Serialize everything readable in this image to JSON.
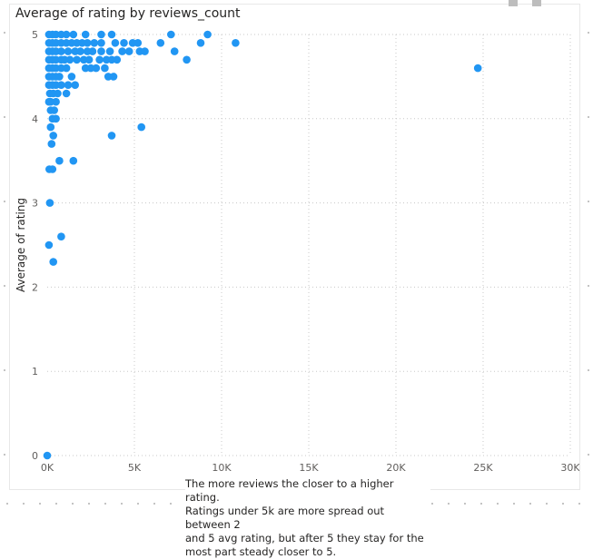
{
  "visual": {
    "title": "Average of rating by reviews_count"
  },
  "note": {
    "text": "The more reviews the closer to a higher rating.\nRatings under 5k are more spread out between 2\nand 5 avg rating, but after 5 they stay for the\nmost part steady closer to 5."
  },
  "colors": {
    "marker": "#2196f3",
    "grid": "#c8c8c8",
    "text": "#252423",
    "tick": "#605e5c"
  },
  "chart_data": {
    "type": "scatter",
    "title": "Average of rating by reviews_count",
    "xlabel": "",
    "ylabel": "Average of rating",
    "xlim": [
      0,
      30000
    ],
    "ylim": [
      0,
      5
    ],
    "x_ticks": [
      0,
      5000,
      10000,
      15000,
      20000,
      25000,
      30000
    ],
    "x_tick_labels": [
      "0K",
      "5K",
      "10K",
      "15K",
      "20K",
      "25K",
      "30K"
    ],
    "y_ticks": [
      0,
      1,
      2,
      3,
      4,
      5
    ],
    "y_tick_labels": [
      "0",
      "1",
      "2",
      "3",
      "4",
      "5"
    ],
    "grid": true,
    "series": [
      {
        "points": [
          [
            0,
            0
          ],
          [
            100,
            2.5
          ],
          [
            150,
            3.0
          ],
          [
            120,
            3.4
          ],
          [
            300,
            3.4
          ],
          [
            350,
            2.3
          ],
          [
            800,
            2.6
          ],
          [
            700,
            3.5
          ],
          [
            1500,
            3.5
          ],
          [
            250,
            3.7
          ],
          [
            350,
            3.8
          ],
          [
            3700,
            3.8
          ],
          [
            5400,
            3.9
          ],
          [
            200,
            3.9
          ],
          [
            300,
            4.0
          ],
          [
            500,
            4.0
          ],
          [
            200,
            4.1
          ],
          [
            400,
            4.1
          ],
          [
            200,
            4.2
          ],
          [
            500,
            4.2
          ],
          [
            100,
            4.2
          ],
          [
            150,
            4.3
          ],
          [
            350,
            4.3
          ],
          [
            1100,
            4.3
          ],
          [
            600,
            4.3
          ],
          [
            100,
            4.4
          ],
          [
            300,
            4.4
          ],
          [
            500,
            4.4
          ],
          [
            800,
            4.4
          ],
          [
            1200,
            4.4
          ],
          [
            1600,
            4.4
          ],
          [
            100,
            4.5
          ],
          [
            300,
            4.5
          ],
          [
            500,
            4.5
          ],
          [
            700,
            4.5
          ],
          [
            1400,
            4.5
          ],
          [
            3500,
            4.5
          ],
          [
            3800,
            4.5
          ],
          [
            100,
            4.6
          ],
          [
            300,
            4.6
          ],
          [
            500,
            4.6
          ],
          [
            800,
            4.6
          ],
          [
            1100,
            4.6
          ],
          [
            2200,
            4.6
          ],
          [
            2500,
            4.6
          ],
          [
            2800,
            4.6
          ],
          [
            3300,
            4.6
          ],
          [
            24700,
            4.6
          ],
          [
            100,
            4.7
          ],
          [
            300,
            4.7
          ],
          [
            500,
            4.7
          ],
          [
            800,
            4.7
          ],
          [
            1000,
            4.7
          ],
          [
            1300,
            4.7
          ],
          [
            1700,
            4.7
          ],
          [
            2100,
            4.7
          ],
          [
            2400,
            4.7
          ],
          [
            3000,
            4.7
          ],
          [
            3400,
            4.7
          ],
          [
            3700,
            4.7
          ],
          [
            4000,
            4.7
          ],
          [
            8000,
            4.7
          ],
          [
            100,
            4.8
          ],
          [
            300,
            4.8
          ],
          [
            500,
            4.8
          ],
          [
            800,
            4.8
          ],
          [
            1200,
            4.8
          ],
          [
            1600,
            4.8
          ],
          [
            1900,
            4.8
          ],
          [
            2300,
            4.8
          ],
          [
            2600,
            4.8
          ],
          [
            3100,
            4.8
          ],
          [
            3600,
            4.8
          ],
          [
            4300,
            4.8
          ],
          [
            4700,
            4.8
          ],
          [
            5300,
            4.8
          ],
          [
            5600,
            4.8
          ],
          [
            7300,
            4.8
          ],
          [
            100,
            4.9
          ],
          [
            300,
            4.9
          ],
          [
            500,
            4.9
          ],
          [
            800,
            4.9
          ],
          [
            1100,
            4.9
          ],
          [
            1400,
            4.9
          ],
          [
            1700,
            4.9
          ],
          [
            2000,
            4.9
          ],
          [
            2300,
            4.9
          ],
          [
            2700,
            4.9
          ],
          [
            3100,
            4.9
          ],
          [
            3900,
            4.9
          ],
          [
            4400,
            4.9
          ],
          [
            4900,
            4.9
          ],
          [
            5200,
            4.9
          ],
          [
            6500,
            4.9
          ],
          [
            8800,
            4.9
          ],
          [
            10800,
            4.9
          ],
          [
            100,
            5.0
          ],
          [
            300,
            5.0
          ],
          [
            500,
            5.0
          ],
          [
            800,
            5.0
          ],
          [
            1100,
            5.0
          ],
          [
            1500,
            5.0
          ],
          [
            2200,
            5.0
          ],
          [
            3100,
            5.0
          ],
          [
            3700,
            5.0
          ],
          [
            7100,
            5.0
          ],
          [
            9200,
            5.0
          ]
        ]
      }
    ]
  }
}
